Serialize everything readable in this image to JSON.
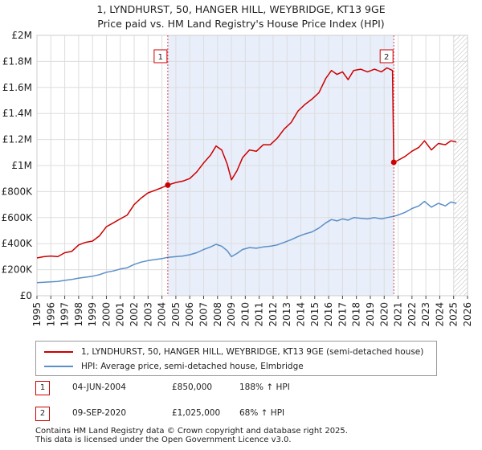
{
  "chart_data": {
    "type": "line",
    "title": "1, LYNDHURST, 50, HANGER HILL, WEYBRIDGE, KT13 9GE",
    "subtitle": "Price paid vs. HM Land Registry's House Price Index (HPI)",
    "xlim": [
      1995,
      2026
    ],
    "ylim": [
      0,
      2000000
    ],
    "x_ticks": [
      "1995",
      "1996",
      "1997",
      "1998",
      "1999",
      "2000",
      "2001",
      "2002",
      "2003",
      "2004",
      "2005",
      "2006",
      "2007",
      "2008",
      "2009",
      "2010",
      "2011",
      "2012",
      "2013",
      "2014",
      "2015",
      "2016",
      "2017",
      "2018",
      "2019",
      "2020",
      "2021",
      "2022",
      "2023",
      "2024",
      "2025",
      "2026"
    ],
    "y_ticks": [
      {
        "value": 0,
        "label": "£0"
      },
      {
        "value": 200000,
        "label": "£200K"
      },
      {
        "value": 400000,
        "label": "£400K"
      },
      {
        "value": 600000,
        "label": "£600K"
      },
      {
        "value": 800000,
        "label": "£800K"
      },
      {
        "value": 1000000,
        "label": "£1M"
      },
      {
        "value": 1200000,
        "label": "£1.2M"
      },
      {
        "value": 1400000,
        "label": "£1.4M"
      },
      {
        "value": 1600000,
        "label": "£1.6M"
      },
      {
        "value": 1800000,
        "label": "£1.8M"
      },
      {
        "value": 2000000,
        "label": "£2M"
      }
    ],
    "shaded_period": [
      2004.42,
      2020.69
    ],
    "future_hatch_from": 2025.0,
    "series": [
      {
        "name": "1, LYNDHURST, 50, HANGER HILL, WEYBRIDGE, KT13 9GE (semi-detached house)",
        "color": "#cc0000",
        "points": [
          [
            1995.0,
            290000
          ],
          [
            1995.5,
            300000
          ],
          [
            1996.0,
            305000
          ],
          [
            1996.5,
            300000
          ],
          [
            1997.0,
            330000
          ],
          [
            1997.5,
            340000
          ],
          [
            1998.0,
            390000
          ],
          [
            1998.5,
            410000
          ],
          [
            1999.0,
            420000
          ],
          [
            1999.5,
            460000
          ],
          [
            2000.0,
            530000
          ],
          [
            2000.5,
            560000
          ],
          [
            2001.0,
            590000
          ],
          [
            2001.5,
            620000
          ],
          [
            2002.0,
            700000
          ],
          [
            2002.5,
            750000
          ],
          [
            2003.0,
            790000
          ],
          [
            2003.5,
            810000
          ],
          [
            2004.0,
            830000
          ],
          [
            2004.42,
            850000
          ],
          [
            2005.0,
            870000
          ],
          [
            2005.5,
            880000
          ],
          [
            2006.0,
            900000
          ],
          [
            2006.5,
            950000
          ],
          [
            2007.0,
            1020000
          ],
          [
            2007.5,
            1080000
          ],
          [
            2007.9,
            1150000
          ],
          [
            2008.3,
            1120000
          ],
          [
            2008.7,
            1010000
          ],
          [
            2009.0,
            890000
          ],
          [
            2009.4,
            960000
          ],
          [
            2009.8,
            1060000
          ],
          [
            2010.3,
            1120000
          ],
          [
            2010.8,
            1110000
          ],
          [
            2011.3,
            1160000
          ],
          [
            2011.8,
            1160000
          ],
          [
            2012.3,
            1210000
          ],
          [
            2012.8,
            1280000
          ],
          [
            2013.3,
            1330000
          ],
          [
            2013.8,
            1420000
          ],
          [
            2014.3,
            1470000
          ],
          [
            2014.8,
            1510000
          ],
          [
            2015.3,
            1560000
          ],
          [
            2015.8,
            1670000
          ],
          [
            2016.2,
            1730000
          ],
          [
            2016.6,
            1700000
          ],
          [
            2017.0,
            1720000
          ],
          [
            2017.4,
            1660000
          ],
          [
            2017.8,
            1730000
          ],
          [
            2018.3,
            1740000
          ],
          [
            2018.8,
            1720000
          ],
          [
            2019.3,
            1740000
          ],
          [
            2019.8,
            1720000
          ],
          [
            2020.2,
            1750000
          ],
          [
            2020.6,
            1730000
          ],
          [
            2020.69,
            1025000
          ],
          [
            2021.0,
            1040000
          ],
          [
            2021.5,
            1070000
          ],
          [
            2022.0,
            1110000
          ],
          [
            2022.5,
            1140000
          ],
          [
            2022.9,
            1190000
          ],
          [
            2023.4,
            1120000
          ],
          [
            2023.9,
            1170000
          ],
          [
            2024.4,
            1160000
          ],
          [
            2024.8,
            1190000
          ],
          [
            2025.2,
            1180000
          ]
        ]
      },
      {
        "name": "HPI: Average price, semi-detached house, Elmbridge",
        "color": "#5b8fc7",
        "points": [
          [
            1995.0,
            100000
          ],
          [
            1995.5,
            103000
          ],
          [
            1996.0,
            106000
          ],
          [
            1996.5,
            110000
          ],
          [
            1997.0,
            118000
          ],
          [
            1997.5,
            125000
          ],
          [
            1998.0,
            135000
          ],
          [
            1998.5,
            142000
          ],
          [
            1999.0,
            150000
          ],
          [
            1999.5,
            162000
          ],
          [
            2000.0,
            180000
          ],
          [
            2000.5,
            190000
          ],
          [
            2001.0,
            205000
          ],
          [
            2001.5,
            215000
          ],
          [
            2002.0,
            240000
          ],
          [
            2002.5,
            258000
          ],
          [
            2003.0,
            270000
          ],
          [
            2003.5,
            278000
          ],
          [
            2004.0,
            285000
          ],
          [
            2004.42,
            295000
          ],
          [
            2005.0,
            300000
          ],
          [
            2005.5,
            305000
          ],
          [
            2006.0,
            315000
          ],
          [
            2006.5,
            330000
          ],
          [
            2007.0,
            355000
          ],
          [
            2007.5,
            375000
          ],
          [
            2007.9,
            395000
          ],
          [
            2008.3,
            380000
          ],
          [
            2008.7,
            345000
          ],
          [
            2009.0,
            300000
          ],
          [
            2009.4,
            325000
          ],
          [
            2009.8,
            355000
          ],
          [
            2010.3,
            370000
          ],
          [
            2010.8,
            365000
          ],
          [
            2011.3,
            375000
          ],
          [
            2011.8,
            380000
          ],
          [
            2012.3,
            390000
          ],
          [
            2012.8,
            410000
          ],
          [
            2013.3,
            430000
          ],
          [
            2013.8,
            455000
          ],
          [
            2014.3,
            475000
          ],
          [
            2014.8,
            490000
          ],
          [
            2015.3,
            520000
          ],
          [
            2015.8,
            560000
          ],
          [
            2016.2,
            585000
          ],
          [
            2016.6,
            575000
          ],
          [
            2017.0,
            590000
          ],
          [
            2017.4,
            580000
          ],
          [
            2017.8,
            600000
          ],
          [
            2018.3,
            595000
          ],
          [
            2018.8,
            590000
          ],
          [
            2019.3,
            600000
          ],
          [
            2019.8,
            590000
          ],
          [
            2020.2,
            600000
          ],
          [
            2020.69,
            610000
          ],
          [
            2021.0,
            620000
          ],
          [
            2021.5,
            640000
          ],
          [
            2022.0,
            670000
          ],
          [
            2022.5,
            690000
          ],
          [
            2022.9,
            725000
          ],
          [
            2023.4,
            680000
          ],
          [
            2023.9,
            710000
          ],
          [
            2024.4,
            690000
          ],
          [
            2024.8,
            720000
          ],
          [
            2025.2,
            710000
          ]
        ]
      }
    ],
    "sales": [
      {
        "id": "1",
        "x": 2004.42,
        "price": 850000
      },
      {
        "id": "2",
        "x": 2020.69,
        "price": 1025000
      }
    ]
  },
  "legend": {
    "property_label": "1, LYNDHURST, 50, HANGER HILL, WEYBRIDGE, KT13 9GE (semi-detached house)",
    "hpi_label": "HPI: Average price, semi-detached house, Elmbridge"
  },
  "sales_table": [
    {
      "id": "1",
      "date": "04-JUN-2004",
      "price": "£850,000",
      "hpi": "188% ↑ HPI"
    },
    {
      "id": "2",
      "date": "09-SEP-2020",
      "price": "£1,025,000",
      "hpi": "68% ↑ HPI"
    }
  ],
  "footer": {
    "line1": "Contains HM Land Registry data © Crown copyright and database right 2025.",
    "line2": "This data is licensed under the Open Government Licence v3.0."
  },
  "colors": {
    "property": "#cc0000",
    "hpi": "#5b8fc7",
    "shade": "#e8eefa",
    "grid": "#dddddd"
  }
}
